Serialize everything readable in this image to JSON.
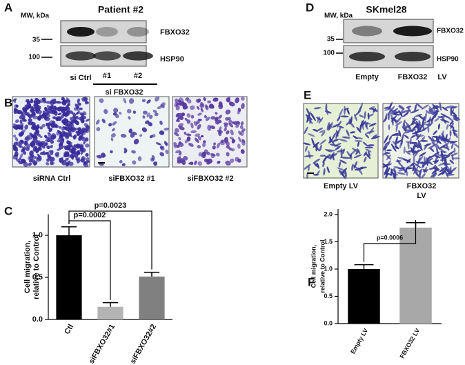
{
  "panel_labels": [
    "A",
    "B",
    "C",
    "D",
    "E",
    "F"
  ],
  "panel_a": {
    "title": "Patient #2",
    "mw_label": "MW, kDa",
    "markers": [
      "35",
      "100"
    ],
    "bands": [
      "FBXO32",
      "HSP90"
    ],
    "lanes": [
      "si Ctrl",
      "#1",
      "#2"
    ],
    "group": "si FBXO32"
  },
  "panel_d": {
    "title": "SKmel28",
    "mw_label": "MW, kDa",
    "markers": [
      "35",
      "100"
    ],
    "bands": [
      "FBXO32",
      "HSP90"
    ],
    "lanes": [
      "Empty",
      "FBXO32"
    ],
    "vector": "LV"
  },
  "panel_b": {
    "captions": [
      "siRNA Ctrl",
      "siFBXO32 #1",
      "siFBXO32 #2"
    ]
  },
  "panel_e": {
    "captions": [
      [
        "Empty LV"
      ],
      [
        "FBXO32",
        "LV"
      ]
    ]
  },
  "chart_data": [
    {
      "type": "bar",
      "ylabel": [
        "Cell migration,",
        "relative to Control"
      ],
      "categories": [
        "Ctl",
        "siFBXO32#1",
        "siFBXO32#2"
      ],
      "values": [
        1.0,
        0.15,
        0.51
      ],
      "errors": [
        0.1,
        0.05,
        0.05
      ],
      "colors": [
        "#000000",
        "#b4b4b4",
        "#808080"
      ],
      "ylim": [
        0,
        1.25
      ],
      "yticks": [
        {
          "value": 0,
          "label": "0.0"
        },
        {
          "value": 0.5,
          "label": "0.5"
        },
        {
          "value": 1,
          "label": "1.0"
        }
      ],
      "annotations": [
        "p=0.0002",
        "p=0.0023"
      ]
    },
    {
      "type": "bar",
      "ylabel": [
        "Cell migration,",
        "relative to Control"
      ],
      "categories": [
        "Empty LV",
        "FBXO32 LV"
      ],
      "values": [
        1.0,
        1.76
      ],
      "errors": [
        0.08,
        0.09
      ],
      "colors": [
        "#000000",
        "#a8a8a8"
      ],
      "ylim": [
        0,
        2.1
      ],
      "yticks": [
        {
          "value": 0,
          "label": "0.0"
        },
        {
          "value": 0.5,
          "label": "0.5"
        },
        {
          "value": 1,
          "label": "1.0"
        },
        {
          "value": 1.5,
          "label": "1.5"
        },
        {
          "value": 2,
          "label": "2.0"
        }
      ],
      "annotations": [
        "p=0.0006"
      ]
    }
  ]
}
